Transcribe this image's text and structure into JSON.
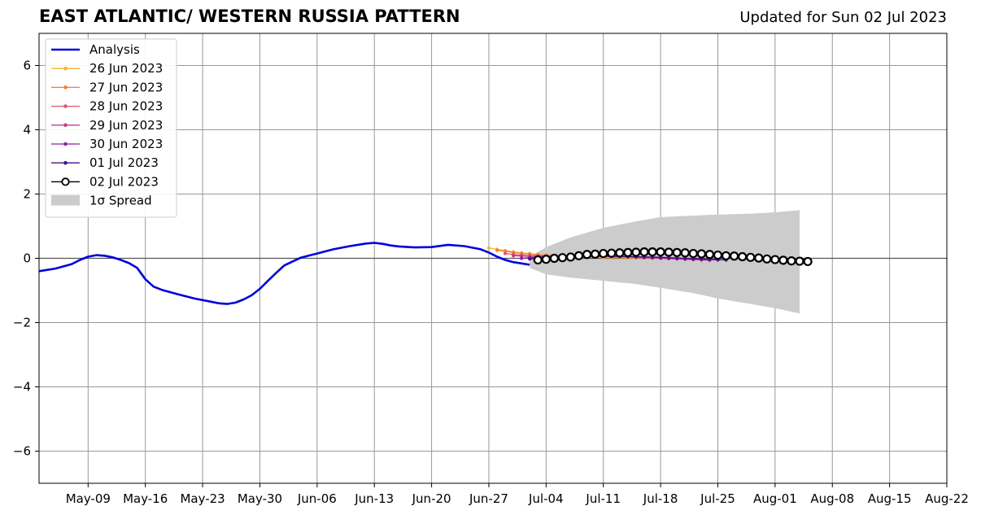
{
  "chart_data": {
    "type": "line",
    "title": "EAST ATLANTIC/ WESTERN RUSSIA PATTERN",
    "subtitle": "Updated for Sun 02 Jul 2023",
    "xlabel": "",
    "ylabel": "",
    "xlim": [
      "2023-05-03",
      "2023-08-22"
    ],
    "ylim": [
      -7,
      7
    ],
    "x_ticks": [
      "2023-05-09",
      "2023-05-16",
      "2023-05-23",
      "2023-05-30",
      "2023-06-06",
      "2023-06-13",
      "2023-06-20",
      "2023-06-27",
      "2023-07-04",
      "2023-07-11",
      "2023-07-18",
      "2023-07-25",
      "2023-08-01",
      "2023-08-08",
      "2023-08-15",
      "2023-08-22"
    ],
    "x_tick_labels": [
      "May-09",
      "May-16",
      "May-23",
      "May-30",
      "Jun-06",
      "Jun-13",
      "Jun-20",
      "Jun-27",
      "Jul-04",
      "Jul-11",
      "Jul-18",
      "Jul-25",
      "Aug-01",
      "Aug-08",
      "Aug-15",
      "Aug-22"
    ],
    "y_ticks": [
      -6,
      -4,
      -2,
      0,
      2,
      4,
      6
    ],
    "y_tick_labels": [
      "−6",
      "−4",
      "−2",
      "0",
      "2",
      "4",
      "6"
    ],
    "grid": true,
    "legend_position": "top-left",
    "colors": {
      "analysis": "#0000dd",
      "spread": "#cccccc",
      "grid": "#999999"
    },
    "analysis": {
      "name": "Analysis",
      "x": [
        "2023-05-03",
        "2023-05-05",
        "2023-05-07",
        "2023-05-08",
        "2023-05-09",
        "2023-05-10",
        "2023-05-11",
        "2023-05-12",
        "2023-05-13",
        "2023-05-14",
        "2023-05-15",
        "2023-05-16",
        "2023-05-17",
        "2023-05-18",
        "2023-05-20",
        "2023-05-22",
        "2023-05-24",
        "2023-05-25",
        "2023-05-26",
        "2023-05-27",
        "2023-05-28",
        "2023-05-29",
        "2023-05-30",
        "2023-05-31",
        "2023-06-01",
        "2023-06-02",
        "2023-06-04",
        "2023-06-06",
        "2023-06-08",
        "2023-06-10",
        "2023-06-12",
        "2023-06-13",
        "2023-06-14",
        "2023-06-15",
        "2023-06-16",
        "2023-06-18",
        "2023-06-20",
        "2023-06-22",
        "2023-06-24",
        "2023-06-26",
        "2023-06-27",
        "2023-06-28",
        "2023-06-29",
        "2023-06-30",
        "2023-07-01",
        "2023-07-02"
      ],
      "values": [
        -0.4,
        -0.32,
        -0.18,
        -0.05,
        0.05,
        0.1,
        0.08,
        0.03,
        -0.05,
        -0.15,
        -0.3,
        -0.65,
        -0.88,
        -0.98,
        -1.12,
        -1.25,
        -1.35,
        -1.4,
        -1.42,
        -1.38,
        -1.28,
        -1.15,
        -0.95,
        -0.7,
        -0.45,
        -0.22,
        0.02,
        0.15,
        0.28,
        0.38,
        0.46,
        0.48,
        0.45,
        0.4,
        0.37,
        0.34,
        0.35,
        0.42,
        0.38,
        0.28,
        0.18,
        0.05,
        -0.05,
        -0.12,
        -0.16,
        -0.2
      ]
    },
    "spread": {
      "name": "1σ Spread",
      "x": [
        "2023-07-02",
        "2023-07-04",
        "2023-07-07",
        "2023-07-11",
        "2023-07-15",
        "2023-07-18",
        "2023-07-22",
        "2023-07-25",
        "2023-07-29",
        "2023-08-01",
        "2023-08-04"
      ],
      "upper": [
        0.05,
        0.35,
        0.65,
        0.95,
        1.15,
        1.28,
        1.33,
        1.36,
        1.39,
        1.43,
        1.5
      ],
      "lower": [
        -0.3,
        -0.5,
        -0.6,
        -0.7,
        -0.8,
        -0.92,
        -1.08,
        -1.25,
        -1.42,
        -1.55,
        -1.72
      ]
    },
    "series": [
      {
        "name": "26 Jun 2023",
        "color": "#f7b32b",
        "marker": "dot",
        "start": "2023-06-27",
        "values": [
          0.32,
          0.28,
          0.24,
          0.2,
          0.17,
          0.15,
          0.12,
          0.1,
          0.08,
          0.06,
          0.05,
          0.04,
          0.03,
          0.03,
          0.02,
          0.02,
          0.02,
          0.01,
          0.01,
          0.01,
          0.0,
          0.0,
          0.0,
          -0.01,
          -0.01
        ]
      },
      {
        "name": "27 Jun 2023",
        "color": "#ef7f3a",
        "marker": "dot",
        "start": "2023-06-28",
        "values": [
          0.25,
          0.22,
          0.18,
          0.15,
          0.13,
          0.11,
          0.1,
          0.09,
          0.08,
          0.07,
          0.07,
          0.06,
          0.06,
          0.05,
          0.05,
          0.04,
          0.04,
          0.03,
          0.03,
          0.02,
          0.02,
          0.01,
          0.01,
          0.0,
          0.0
        ]
      },
      {
        "name": "28 Jun 2023",
        "color": "#e0566d",
        "marker": "dot",
        "start": "2023-06-29",
        "values": [
          0.15,
          0.12,
          0.1,
          0.08,
          0.07,
          0.06,
          0.06,
          0.06,
          0.07,
          0.07,
          0.07,
          0.06,
          0.06,
          0.05,
          0.05,
          0.04,
          0.03,
          0.02,
          0.01,
          0.0,
          -0.01,
          -0.02,
          -0.03,
          -0.04,
          -0.05
        ]
      },
      {
        "name": "29 Jun 2023",
        "color": "#c03f8e",
        "marker": "dot",
        "start": "2023-06-30",
        "values": [
          0.08,
          0.07,
          0.06,
          0.06,
          0.06,
          0.06,
          0.07,
          0.07,
          0.07,
          0.07,
          0.06,
          0.06,
          0.05,
          0.05,
          0.04,
          0.03,
          0.02,
          0.01,
          0.0,
          -0.01,
          -0.02,
          -0.03,
          -0.04,
          -0.05,
          -0.06
        ]
      },
      {
        "name": "30 Jun 2023",
        "color": "#8e1fa6",
        "marker": "dot",
        "start": "2023-07-01",
        "values": [
          0.0,
          0.02,
          0.03,
          0.04,
          0.05,
          0.06,
          0.06,
          0.07,
          0.07,
          0.07,
          0.07,
          0.06,
          0.06,
          0.05,
          0.05,
          0.04,
          0.03,
          0.02,
          0.01,
          0.0,
          -0.01,
          -0.02,
          -0.03,
          -0.04,
          -0.05
        ]
      },
      {
        "name": "01 Jul 2023",
        "color": "#4a0c87",
        "marker": "dot",
        "start": "2023-07-02",
        "values": [
          -0.02,
          0.0,
          0.02,
          0.04,
          0.05,
          0.06,
          0.07,
          0.07,
          0.07,
          0.07,
          0.07,
          0.06,
          0.06,
          0.05,
          0.04,
          0.04,
          0.03,
          0.02,
          0.01,
          0.0,
          -0.01,
          -0.02,
          -0.03,
          -0.04,
          -0.05
        ]
      },
      {
        "name": "02 Jul 2023",
        "color": "#000000",
        "marker": "circle",
        "start": "2023-07-03",
        "values": [
          -0.05,
          -0.03,
          0.0,
          0.02,
          0.04,
          0.08,
          0.12,
          0.13,
          0.15,
          0.16,
          0.17,
          0.18,
          0.19,
          0.2,
          0.2,
          0.2,
          0.19,
          0.18,
          0.17,
          0.15,
          0.14,
          0.12,
          0.1,
          0.08,
          0.07,
          0.05,
          0.03,
          0.01,
          -0.02,
          -0.04,
          -0.06,
          -0.08,
          -0.09,
          -0.1
        ]
      }
    ]
  }
}
